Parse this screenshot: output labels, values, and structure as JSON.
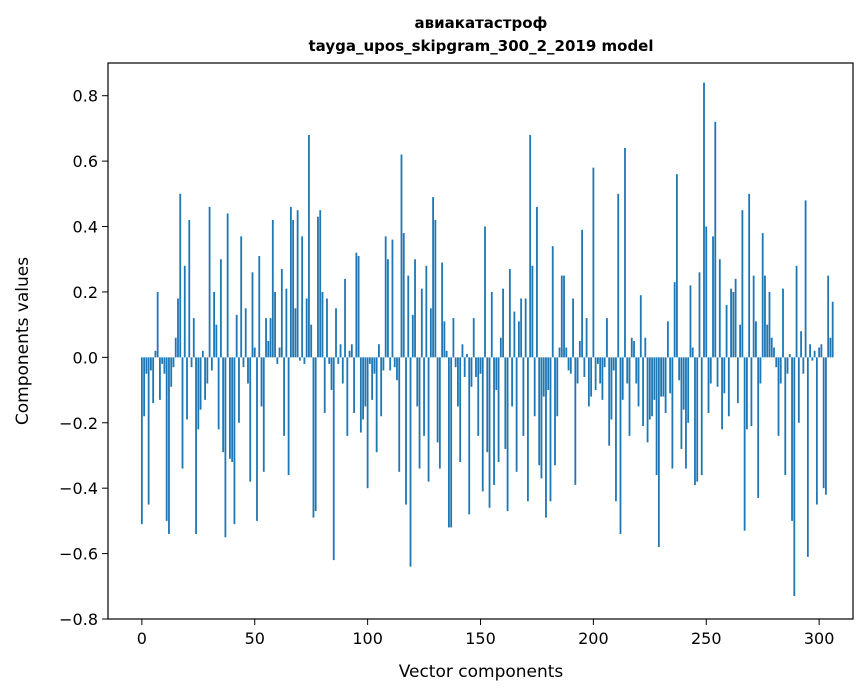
{
  "chart_data": {
    "type": "bar",
    "title": "авиакатастроф",
    "subtitle": "tayga_upos_skipgram_300_2_2019 model",
    "xlabel": "Vector components",
    "ylabel": "Components values",
    "xlim": [
      -15,
      315
    ],
    "ylim": [
      -0.8,
      0.9
    ],
    "xticks": [
      0,
      50,
      100,
      150,
      200,
      250,
      300
    ],
    "yticks": [
      -0.8,
      -0.6,
      -0.4,
      -0.2,
      0.0,
      0.2,
      0.4,
      0.6,
      0.8
    ],
    "xtick_labels": [
      "0",
      "50",
      "100",
      "150",
      "200",
      "250",
      "300"
    ],
    "ytick_labels": [
      "−0.8",
      "−0.6",
      "−0.4",
      "−0.2",
      "0.0",
      "0.2",
      "0.4",
      "0.6",
      "0.8"
    ],
    "grid": false,
    "bar_color": "#1f77b4",
    "values": [
      -0.51,
      -0.18,
      -0.05,
      -0.45,
      -0.04,
      -0.14,
      0.02,
      0.2,
      -0.13,
      -0.02,
      -0.05,
      -0.5,
      -0.54,
      -0.09,
      -0.03,
      0.06,
      0.18,
      0.5,
      -0.34,
      0.28,
      -0.19,
      0.42,
      -0.03,
      0.12,
      -0.54,
      -0.22,
      -0.16,
      0.02,
      -0.13,
      -0.08,
      0.46,
      -0.04,
      0.2,
      0.1,
      -0.22,
      0.3,
      -0.29,
      -0.55,
      0.44,
      -0.31,
      -0.32,
      -0.51,
      0.13,
      -0.2,
      0.37,
      -0.03,
      0.15,
      -0.08,
      -0.38,
      0.26,
      0.03,
      -0.5,
      0.31,
      -0.15,
      -0.35,
      0.12,
      0.05,
      0.12,
      0.42,
      0.2,
      -0.02,
      0.03,
      0.27,
      -0.24,
      0.21,
      -0.36,
      0.46,
      0.42,
      0.15,
      0.45,
      -0.01,
      0.37,
      -0.02,
      0.18,
      0.68,
      0.1,
      -0.49,
      -0.47,
      0.43,
      0.45,
      0.2,
      -0.17,
      0.18,
      -0.02,
      -0.1,
      -0.62,
      0.15,
      -0.02,
      0.04,
      -0.08,
      0.24,
      -0.24,
      0.02,
      0.04,
      -0.17,
      0.32,
      0.31,
      -0.23,
      -0.19,
      -0.15,
      -0.4,
      -0.02,
      -0.13,
      -0.05,
      -0.29,
      0.04,
      -0.18,
      -0.04,
      0.37,
      0.3,
      -0.04,
      0.36,
      -0.03,
      -0.07,
      -0.35,
      0.62,
      0.38,
      -0.45,
      0.25,
      -0.64,
      0.13,
      0.3,
      -0.15,
      -0.34,
      0.21,
      -0.24,
      0.28,
      -0.38,
      0.15,
      0.49,
      0.42,
      -0.26,
      -0.34,
      0.29,
      0.11,
      0.02,
      -0.52,
      -0.52,
      0.12,
      -0.03,
      -0.15,
      -0.32,
      0.04,
      -0.06,
      0.01,
      -0.48,
      -0.09,
      0.12,
      -0.06,
      -0.24,
      -0.05,
      -0.41,
      0.4,
      -0.29,
      -0.46,
      0.2,
      -0.39,
      -0.1,
      -0.32,
      0.06,
      0.21,
      -0.28,
      -0.47,
      0.27,
      -0.15,
      0.14,
      -0.35,
      0.11,
      0.18,
      -0.24,
      0.18,
      -0.44,
      0.68,
      0.28,
      -0.18,
      0.46,
      -0.33,
      -0.37,
      -0.12,
      -0.49,
      -0.1,
      -0.44,
      0.34,
      -0.33,
      -0.18,
      0.03,
      0.25,
      0.25,
      0.03,
      -0.04,
      -0.05,
      0.18,
      -0.39,
      -0.08,
      0.05,
      0.39,
      -0.06,
      0.12,
      -0.15,
      -0.12,
      0.58,
      -0.1,
      -0.02,
      -0.08,
      -0.13,
      -0.03,
      0.12,
      -0.27,
      -0.19,
      -0.04,
      -0.44,
      0.5,
      -0.54,
      -0.13,
      0.64,
      -0.08,
      -0.24,
      0.06,
      0.05,
      -0.08,
      -0.15,
      0.19,
      -0.21,
      0.06,
      -0.26,
      -0.19,
      -0.18,
      -0.13,
      -0.36,
      -0.58,
      -0.12,
      -0.12,
      -0.17,
      0.11,
      -0.11,
      -0.34,
      0.23,
      0.56,
      -0.07,
      -0.28,
      -0.16,
      -0.34,
      -0.2,
      0.22,
      0.03,
      -0.39,
      -0.38,
      0.26,
      -0.36,
      0.84,
      0.4,
      -0.17,
      -0.08,
      0.37,
      0.72,
      -0.09,
      0.3,
      -0.22,
      -0.11,
      0.16,
      -0.18,
      0.21,
      0.2,
      0.24,
      -0.14,
      0.1,
      0.45,
      -0.53,
      -0.22,
      0.5,
      -0.21,
      0.25,
      0.11,
      -0.43,
      -0.08,
      0.38,
      0.25,
      0.1,
      0.2,
      0.06,
      0.03,
      -0.03,
      -0.24,
      -0.08,
      0.21,
      -0.36,
      -0.05,
      0.01,
      -0.5,
      -0.73,
      0.28,
      -0.2,
      0.08,
      -0.05,
      0.48,
      -0.61,
      0.04,
      -0.01,
      0.02,
      -0.45,
      0.03,
      0.04,
      -0.4,
      -0.42,
      0.25,
      0.06,
      0.17
    ]
  }
}
